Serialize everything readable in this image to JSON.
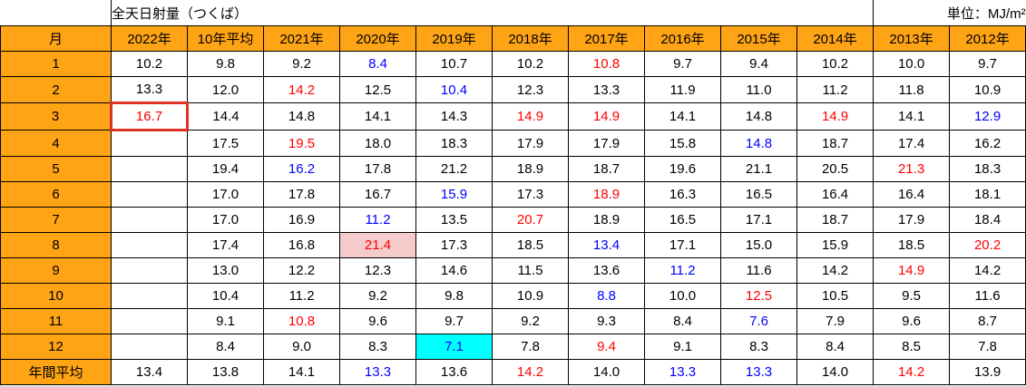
{
  "title": "全天日射量（つくば）",
  "unit_label": "単位：MJ/m²",
  "colors": {
    "header_bg": "#FFA415",
    "max_text": "#FF0000",
    "min_text": "#0000FF",
    "highlight_max_bg": "#F6CBCB",
    "highlight_min_bg": "#00FFFF",
    "box_border": "#DF3226"
  },
  "table": {
    "columns": [
      "月",
      "2022年",
      "10年平均",
      "2021年",
      "2020年",
      "2019年",
      "2018年",
      "2017年",
      "2016年",
      "2015年",
      "2014年",
      "2013年",
      "2012年"
    ],
    "rows": [
      {
        "label": "1",
        "cells": [
          [
            "10.2",
            ""
          ],
          [
            "9.8",
            ""
          ],
          [
            "9.2",
            ""
          ],
          [
            "8.4",
            "min"
          ],
          [
            "10.7",
            ""
          ],
          [
            "10.2",
            ""
          ],
          [
            "10.8",
            "max"
          ],
          [
            "9.7",
            ""
          ],
          [
            "9.4",
            ""
          ],
          [
            "10.2",
            ""
          ],
          [
            "10.0",
            ""
          ],
          [
            "9.7",
            ""
          ]
        ]
      },
      {
        "label": "2",
        "cells": [
          [
            "13.3",
            ""
          ],
          [
            "12.0",
            ""
          ],
          [
            "14.2",
            "max"
          ],
          [
            "12.5",
            ""
          ],
          [
            "10.4",
            "min"
          ],
          [
            "12.3",
            ""
          ],
          [
            "13.3",
            ""
          ],
          [
            "11.9",
            ""
          ],
          [
            "11.0",
            ""
          ],
          [
            "11.2",
            ""
          ],
          [
            "11.8",
            ""
          ],
          [
            "10.9",
            ""
          ]
        ]
      },
      {
        "label": "3",
        "cells": [
          [
            "16.7",
            "max-box"
          ],
          [
            "14.4",
            ""
          ],
          [
            "14.8",
            ""
          ],
          [
            "14.1",
            ""
          ],
          [
            "14.3",
            ""
          ],
          [
            "14.9",
            "max"
          ],
          [
            "14.9",
            "max"
          ],
          [
            "14.1",
            ""
          ],
          [
            "14.8",
            ""
          ],
          [
            "14.9",
            "max"
          ],
          [
            "14.1",
            ""
          ],
          [
            "12.9",
            "min"
          ]
        ]
      },
      {
        "label": "4",
        "cells": [
          [
            "",
            ""
          ],
          [
            "17.5",
            ""
          ],
          [
            "19.5",
            "max"
          ],
          [
            "18.0",
            ""
          ],
          [
            "18.3",
            ""
          ],
          [
            "17.9",
            ""
          ],
          [
            "17.9",
            ""
          ],
          [
            "15.8",
            ""
          ],
          [
            "14.8",
            "min"
          ],
          [
            "18.7",
            ""
          ],
          [
            "17.4",
            ""
          ],
          [
            "16.2",
            ""
          ]
        ]
      },
      {
        "label": "5",
        "cells": [
          [
            "",
            ""
          ],
          [
            "19.4",
            ""
          ],
          [
            "16.2",
            "min"
          ],
          [
            "17.8",
            ""
          ],
          [
            "21.2",
            ""
          ],
          [
            "18.9",
            ""
          ],
          [
            "18.7",
            ""
          ],
          [
            "19.6",
            ""
          ],
          [
            "21.1",
            ""
          ],
          [
            "20.5",
            ""
          ],
          [
            "21.3",
            "max"
          ],
          [
            "18.3",
            ""
          ]
        ]
      },
      {
        "label": "6",
        "cells": [
          [
            "",
            ""
          ],
          [
            "17.0",
            ""
          ],
          [
            "17.8",
            ""
          ],
          [
            "16.7",
            ""
          ],
          [
            "15.9",
            "min"
          ],
          [
            "17.3",
            ""
          ],
          [
            "18.9",
            "max"
          ],
          [
            "16.3",
            ""
          ],
          [
            "16.5",
            ""
          ],
          [
            "16.4",
            ""
          ],
          [
            "16.4",
            ""
          ],
          [
            "18.1",
            ""
          ]
        ]
      },
      {
        "label": "7",
        "cells": [
          [
            "",
            ""
          ],
          [
            "17.0",
            ""
          ],
          [
            "16.9",
            ""
          ],
          [
            "11.2",
            "min"
          ],
          [
            "13.5",
            ""
          ],
          [
            "20.7",
            "max"
          ],
          [
            "18.9",
            ""
          ],
          [
            "16.5",
            ""
          ],
          [
            "17.1",
            ""
          ],
          [
            "18.7",
            ""
          ],
          [
            "17.9",
            ""
          ],
          [
            "18.4",
            ""
          ]
        ]
      },
      {
        "label": "8",
        "cells": [
          [
            "",
            ""
          ],
          [
            "17.4",
            ""
          ],
          [
            "16.8",
            ""
          ],
          [
            "21.4",
            "max-fill"
          ],
          [
            "17.3",
            ""
          ],
          [
            "18.5",
            ""
          ],
          [
            "13.4",
            "min"
          ],
          [
            "17.1",
            ""
          ],
          [
            "15.0",
            ""
          ],
          [
            "15.9",
            ""
          ],
          [
            "18.5",
            ""
          ],
          [
            "20.2",
            "max"
          ]
        ]
      },
      {
        "label": "9",
        "cells": [
          [
            "",
            ""
          ],
          [
            "13.0",
            ""
          ],
          [
            "12.2",
            ""
          ],
          [
            "12.3",
            ""
          ],
          [
            "14.6",
            ""
          ],
          [
            "11.5",
            ""
          ],
          [
            "13.6",
            ""
          ],
          [
            "11.2",
            "min"
          ],
          [
            "11.6",
            ""
          ],
          [
            "14.2",
            ""
          ],
          [
            "14.9",
            "max"
          ],
          [
            "14.2",
            ""
          ]
        ]
      },
      {
        "label": "10",
        "cells": [
          [
            "",
            ""
          ],
          [
            "10.4",
            ""
          ],
          [
            "11.2",
            ""
          ],
          [
            "9.2",
            ""
          ],
          [
            "9.8",
            ""
          ],
          [
            "10.9",
            ""
          ],
          [
            "8.8",
            "min"
          ],
          [
            "10.0",
            ""
          ],
          [
            "12.5",
            "max"
          ],
          [
            "10.5",
            ""
          ],
          [
            "9.5",
            ""
          ],
          [
            "11.6",
            ""
          ]
        ]
      },
      {
        "label": "11",
        "cells": [
          [
            "",
            ""
          ],
          [
            "9.1",
            ""
          ],
          [
            "10.8",
            "max"
          ],
          [
            "9.6",
            ""
          ],
          [
            "9.7",
            ""
          ],
          [
            "9.2",
            ""
          ],
          [
            "9.3",
            ""
          ],
          [
            "8.4",
            ""
          ],
          [
            "7.6",
            "min"
          ],
          [
            "7.9",
            ""
          ],
          [
            "9.6",
            ""
          ],
          [
            "8.7",
            ""
          ]
        ]
      },
      {
        "label": "12",
        "cells": [
          [
            "",
            ""
          ],
          [
            "8.4",
            ""
          ],
          [
            "9.0",
            ""
          ],
          [
            "8.3",
            ""
          ],
          [
            "7.1",
            "min-fill"
          ],
          [
            "7.8",
            ""
          ],
          [
            "9.4",
            "max"
          ],
          [
            "9.1",
            ""
          ],
          [
            "8.3",
            ""
          ],
          [
            "8.4",
            ""
          ],
          [
            "8.5",
            ""
          ],
          [
            "7.8",
            ""
          ]
        ]
      },
      {
        "label": "年間平均",
        "cells": [
          [
            "13.4",
            ""
          ],
          [
            "13.8",
            ""
          ],
          [
            "14.1",
            ""
          ],
          [
            "13.3",
            "min"
          ],
          [
            "13.6",
            ""
          ],
          [
            "14.2",
            "max"
          ],
          [
            "14.0",
            ""
          ],
          [
            "13.3",
            "min"
          ],
          [
            "13.3",
            "min"
          ],
          [
            "14.0",
            ""
          ],
          [
            "14.2",
            "max"
          ],
          [
            "13.9",
            ""
          ]
        ]
      }
    ]
  },
  "legend_note": {
    "max_color_meaning": "maximum value in row (red)",
    "min_color_meaning": "minimum value in row (blue)"
  }
}
